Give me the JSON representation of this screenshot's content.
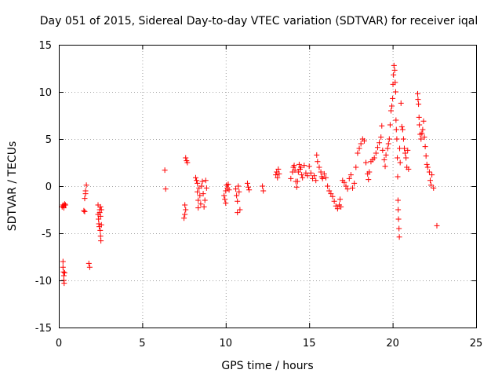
{
  "chart_data": {
    "type": "scatter",
    "title": "Day 051 of 2015, Sidereal Day-to-day VTEC variation (SDTVAR) for receiver iqal",
    "xlabel": "GPS time / hours",
    "ylabel": "SDTVAR / TECUs",
    "xlim": [
      0,
      25
    ],
    "ylim": [
      -15,
      15
    ],
    "x_ticks": [
      0,
      5,
      10,
      15,
      20,
      25
    ],
    "y_ticks": [
      -15,
      -10,
      -5,
      0,
      5,
      10,
      15
    ],
    "x_tick_labels": [
      "0",
      "5",
      "10",
      "15",
      "20",
      "25"
    ],
    "y_tick_labels": [
      "-15",
      "-10",
      "-5",
      "0",
      "5",
      "10",
      "15"
    ],
    "grid": true,
    "marker": "+",
    "marker_color": "#ff0000",
    "series": [
      {
        "name": "SDTVAR",
        "points": [
          [
            0.2,
            -2.2
          ],
          [
            0.25,
            -2.0
          ],
          [
            0.3,
            -2.1
          ],
          [
            0.35,
            -1.9
          ],
          [
            0.4,
            -2.0
          ],
          [
            0.3,
            -2.3
          ],
          [
            0.25,
            -8.0
          ],
          [
            0.25,
            -8.6
          ],
          [
            0.28,
            -9.1
          ],
          [
            0.3,
            -9.5
          ],
          [
            0.3,
            -10.0
          ],
          [
            0.32,
            -10.3
          ],
          [
            0.35,
            -9.2
          ],
          [
            1.5,
            -2.6
          ],
          [
            1.55,
            -1.3
          ],
          [
            1.6,
            -0.8
          ],
          [
            1.65,
            0.1
          ],
          [
            1.6,
            -0.5
          ],
          [
            1.55,
            -2.7
          ],
          [
            1.8,
            -8.2
          ],
          [
            1.85,
            -8.6
          ],
          [
            2.35,
            -2.0
          ],
          [
            2.35,
            -3.0
          ],
          [
            2.38,
            -3.5
          ],
          [
            2.4,
            -4.0
          ],
          [
            2.42,
            -4.3
          ],
          [
            2.45,
            -2.5
          ],
          [
            2.48,
            -4.7
          ],
          [
            2.5,
            -5.3
          ],
          [
            2.52,
            -5.8
          ],
          [
            2.45,
            -2.8
          ],
          [
            2.5,
            -2.2
          ],
          [
            2.5,
            -3.2
          ],
          [
            2.55,
            -2.5
          ],
          [
            2.55,
            -4.1
          ],
          [
            6.35,
            1.7
          ],
          [
            6.4,
            -0.3
          ],
          [
            7.5,
            -3.4
          ],
          [
            7.55,
            -2.0
          ],
          [
            7.55,
            -3.0
          ],
          [
            7.6,
            -2.5
          ],
          [
            7.6,
            3.0
          ],
          [
            7.65,
            2.7
          ],
          [
            7.7,
            2.5
          ],
          [
            8.2,
            0.9
          ],
          [
            8.25,
            0.6
          ],
          [
            8.3,
            0.3
          ],
          [
            8.3,
            -0.6
          ],
          [
            8.35,
            -1.5
          ],
          [
            8.35,
            -2.3
          ],
          [
            8.4,
            -0.2
          ],
          [
            8.45,
            -1.0
          ],
          [
            8.5,
            -1.9
          ],
          [
            8.55,
            0.0
          ],
          [
            8.6,
            0.5
          ],
          [
            8.65,
            -0.8
          ],
          [
            8.7,
            -2.2
          ],
          [
            8.75,
            -1.5
          ],
          [
            8.8,
            0.6
          ],
          [
            8.85,
            -0.2
          ],
          [
            9.9,
            -1.0
          ],
          [
            9.95,
            -1.4
          ],
          [
            10.0,
            -0.5
          ],
          [
            10.0,
            -1.8
          ],
          [
            10.05,
            0.1
          ],
          [
            10.1,
            -0.2
          ],
          [
            10.15,
            0.2
          ],
          [
            10.2,
            -0.4
          ],
          [
            10.6,
            -0.3
          ],
          [
            10.65,
            -1.0
          ],
          [
            10.7,
            -1.6
          ],
          [
            10.7,
            -2.8
          ],
          [
            10.75,
            0.0
          ],
          [
            10.8,
            -0.6
          ],
          [
            10.85,
            -2.5
          ],
          [
            11.3,
            0.3
          ],
          [
            11.35,
            -0.1
          ],
          [
            11.4,
            -0.4
          ],
          [
            12.2,
            0.0
          ],
          [
            12.25,
            -0.5
          ],
          [
            13.0,
            1.2
          ],
          [
            13.05,
            1.5
          ],
          [
            13.1,
            0.9
          ],
          [
            13.15,
            1.8
          ],
          [
            13.2,
            1.3
          ],
          [
            13.9,
            0.8
          ],
          [
            14.0,
            1.5
          ],
          [
            14.05,
            2.0
          ],
          [
            14.1,
            2.2
          ],
          [
            14.15,
            1.7
          ],
          [
            14.2,
            0.5
          ],
          [
            14.25,
            -0.1
          ],
          [
            14.3,
            0.5
          ],
          [
            14.35,
            1.5
          ],
          [
            14.4,
            2.3
          ],
          [
            14.45,
            1.8
          ],
          [
            14.5,
            2.0
          ],
          [
            14.55,
            1.2
          ],
          [
            14.6,
            0.9
          ],
          [
            14.7,
            2.2
          ],
          [
            14.8,
            1.4
          ],
          [
            14.9,
            1.1
          ],
          [
            15.0,
            2.1
          ],
          [
            15.1,
            1.4
          ],
          [
            15.2,
            0.8
          ],
          [
            15.3,
            1.1
          ],
          [
            15.4,
            0.6
          ],
          [
            15.45,
            3.3
          ],
          [
            15.5,
            2.6
          ],
          [
            15.6,
            2.0
          ],
          [
            15.7,
            1.5
          ],
          [
            15.75,
            1.0
          ],
          [
            15.8,
            0.8
          ],
          [
            15.9,
            1.3
          ],
          [
            16.0,
            0.9
          ],
          [
            16.1,
            0.0
          ],
          [
            16.2,
            -0.5
          ],
          [
            16.3,
            -0.8
          ],
          [
            16.4,
            -1.1
          ],
          [
            16.5,
            -1.6
          ],
          [
            16.6,
            -2.1
          ],
          [
            16.7,
            -2.4
          ],
          [
            16.8,
            -2.0
          ],
          [
            16.85,
            -1.4
          ],
          [
            16.9,
            -2.2
          ],
          [
            17.0,
            0.6
          ],
          [
            17.1,
            0.4
          ],
          [
            17.2,
            0.0
          ],
          [
            17.3,
            -0.3
          ],
          [
            17.4,
            0.8
          ],
          [
            17.5,
            1.2
          ],
          [
            17.6,
            -0.2
          ],
          [
            17.7,
            0.3
          ],
          [
            17.8,
            2.0
          ],
          [
            17.9,
            3.5
          ],
          [
            18.0,
            4.0
          ],
          [
            18.1,
            4.5
          ],
          [
            18.2,
            5.0
          ],
          [
            18.3,
            4.8
          ],
          [
            18.4,
            2.5
          ],
          [
            18.5,
            1.3
          ],
          [
            18.55,
            0.7
          ],
          [
            18.6,
            1.5
          ],
          [
            18.7,
            2.6
          ],
          [
            18.8,
            2.8
          ],
          [
            18.9,
            3.0
          ],
          [
            19.0,
            3.5
          ],
          [
            19.1,
            4.1
          ],
          [
            19.2,
            4.6
          ],
          [
            19.3,
            5.2
          ],
          [
            19.35,
            6.4
          ],
          [
            19.4,
            3.8
          ],
          [
            19.5,
            2.8
          ],
          [
            19.55,
            2.1
          ],
          [
            19.6,
            3.3
          ],
          [
            19.7,
            4.0
          ],
          [
            19.75,
            4.5
          ],
          [
            19.8,
            5.0
          ],
          [
            19.85,
            6.5
          ],
          [
            19.9,
            8.0
          ],
          [
            19.95,
            8.5
          ],
          [
            20.0,
            9.3
          ],
          [
            20.02,
            10.8
          ],
          [
            20.05,
            11.8
          ],
          [
            20.08,
            12.8
          ],
          [
            20.12,
            12.3
          ],
          [
            20.15,
            11.0
          ],
          [
            20.18,
            10.0
          ],
          [
            20.2,
            7.0
          ],
          [
            20.22,
            6.0
          ],
          [
            20.25,
            5.0
          ],
          [
            20.28,
            3.0
          ],
          [
            20.3,
            1.0
          ],
          [
            20.32,
            -1.5
          ],
          [
            20.33,
            -2.5
          ],
          [
            20.35,
            -3.5
          ],
          [
            20.38,
            -4.5
          ],
          [
            20.4,
            -5.4
          ],
          [
            20.42,
            4.0
          ],
          [
            20.45,
            2.5
          ],
          [
            20.5,
            8.8
          ],
          [
            20.55,
            6.3
          ],
          [
            20.6,
            6.0
          ],
          [
            20.65,
            5.0
          ],
          [
            20.7,
            4.0
          ],
          [
            20.75,
            3.5
          ],
          [
            20.8,
            3.0
          ],
          [
            20.85,
            2.0
          ],
          [
            20.9,
            3.8
          ],
          [
            20.95,
            1.8
          ],
          [
            21.5,
            9.8
          ],
          [
            21.52,
            9.2
          ],
          [
            21.55,
            8.7
          ],
          [
            21.58,
            7.3
          ],
          [
            21.6,
            6.5
          ],
          [
            21.65,
            5.5
          ],
          [
            21.7,
            5.0
          ],
          [
            21.75,
            5.6
          ],
          [
            21.8,
            6.0
          ],
          [
            21.85,
            6.9
          ],
          [
            21.9,
            5.2
          ],
          [
            21.95,
            4.2
          ],
          [
            22.0,
            3.2
          ],
          [
            22.05,
            2.3
          ],
          [
            22.1,
            2.0
          ],
          [
            22.2,
            1.5
          ],
          [
            22.25,
            0.6
          ],
          [
            22.3,
            0.1
          ],
          [
            22.35,
            1.2
          ],
          [
            22.45,
            -0.2
          ],
          [
            22.65,
            -4.2
          ]
        ]
      }
    ]
  }
}
